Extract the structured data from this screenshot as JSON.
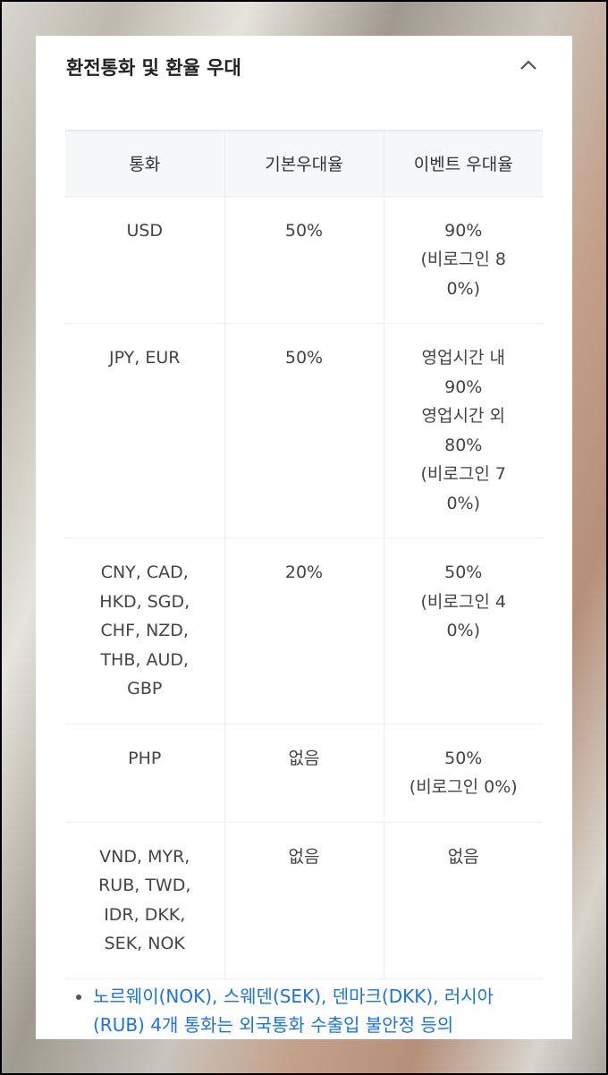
{
  "section": {
    "title": "환전통화 및 환율 우대",
    "collapse_icon": "chevron-up-icon"
  },
  "table": {
    "headers": [
      "통화",
      "기본우대율",
      "이벤트 우대율"
    ],
    "rows": [
      [
        "USD",
        "50%",
        "90%\n(비로그인 8\n0%)"
      ],
      [
        "JPY, EUR",
        "50%",
        "영업시간 내\n90%\n영업시간 외\n80%\n(비로그인 7\n0%)"
      ],
      [
        "CNY, CAD,\nHKD, SGD,\nCHF, NZD,\nTHB, AUD,\nGBP",
        "20%",
        "50%\n(비로그인 4\n0%)"
      ],
      [
        "PHP",
        "없음",
        "50%\n(비로그인 0%)"
      ],
      [
        "VND, MYR,\nRUB, TWD,\nIDR, DKK,\nSEK, NOK",
        "없음",
        "없음"
      ]
    ]
  },
  "note": "노르웨이(NOK), 스웨덴(SEK), 덴마크(DKK), 러시아(RUB) 4개 통화는 외국통화 수출입 불안정 등의",
  "colors": {
    "link": "#1a73e8",
    "header_bg": "#f6f7f9"
  }
}
